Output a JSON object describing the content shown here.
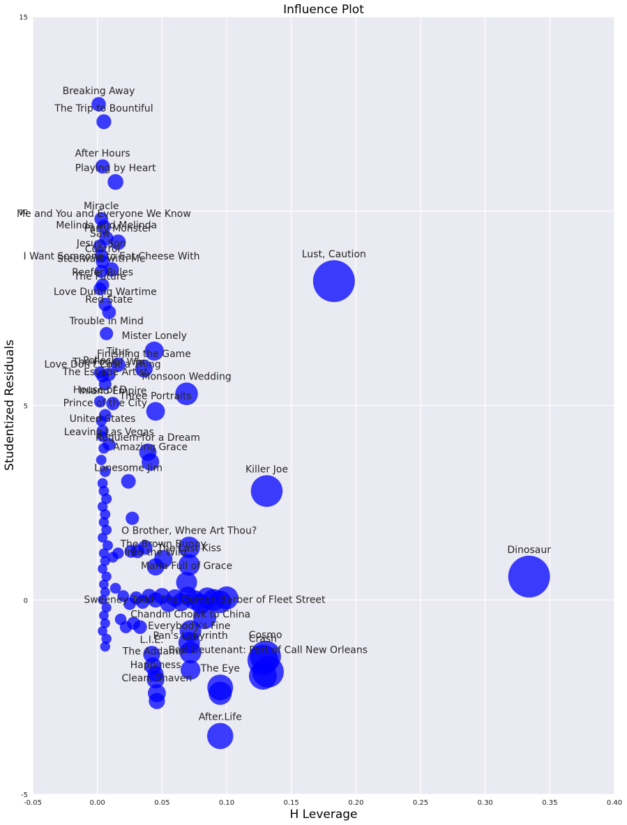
{
  "chart_data": {
    "type": "scatter",
    "title": "Influence Plot",
    "xlabel": "H Leverage",
    "ylabel": "Studentized Residuals",
    "xlim": [
      -0.05,
      0.4
    ],
    "ylim": [
      -5,
      15
    ],
    "xticks": [
      "-0.05",
      "0.00",
      "0.05",
      "0.10",
      "0.15",
      "0.20",
      "0.25",
      "0.30",
      "0.35",
      "0.40"
    ],
    "yticks": [
      "-5",
      "0",
      "5",
      "10",
      "15"
    ],
    "grid": true,
    "colors": {
      "background": "#eaeaf2",
      "grid": "#ffffff",
      "marker": "#0000ff",
      "label": "#262626"
    },
    "labeled_points": [
      {
        "label": "Breaking Away",
        "x": 0.001,
        "y": 12.75
      },
      {
        "label": "The Trip to Bountiful",
        "x": 0.005,
        "y": 12.3
      },
      {
        "label": "After Hours",
        "x": 0.004,
        "y": 11.15
      },
      {
        "label": "Playing by Heart",
        "x": 0.014,
        "y": 10.75
      },
      {
        "label": "Miracle",
        "x": 0.003,
        "y": 9.8
      },
      {
        "label": "Me and You and Everyone We Know",
        "x": 0.005,
        "y": 9.6
      },
      {
        "label": "Melinda and Melinda",
        "x": 0.007,
        "y": 9.3
      },
      {
        "label": "Party Monster",
        "x": 0.016,
        "y": 9.2
      },
      {
        "label": "Saw",
        "x": 0.002,
        "y": 9.1
      },
      {
        "label": "Jesus' Son",
        "x": 0.003,
        "y": 8.85
      },
      {
        "label": "Control",
        "x": 0.004,
        "y": 8.7
      },
      {
        "label": "Steelwalk with Me",
        "x": 0.003,
        "y": 8.45
      },
      {
        "label": "I Want Someone to Eat Cheese With",
        "x": 0.011,
        "y": 8.5
      },
      {
        "label": "Reefer Rules",
        "x": 0.004,
        "y": 8.1
      },
      {
        "label": "The Future",
        "x": 0.002,
        "y": 8.0
      },
      {
        "label": "Love During Wartime",
        "x": 0.006,
        "y": 7.6
      },
      {
        "label": "Red State",
        "x": 0.009,
        "y": 7.4
      },
      {
        "label": "Trouble in Mind",
        "x": 0.007,
        "y": 6.85
      },
      {
        "label": "Mister Lonely",
        "x": 0.044,
        "y": 6.4
      },
      {
        "label": "Titus",
        "x": 0.016,
        "y": 6.05
      },
      {
        "label": "Finishing the Game",
        "x": 0.036,
        "y": 5.95
      },
      {
        "label": "Pollock",
        "x": 0.002,
        "y": 5.85
      },
      {
        "label": "The Fog of War",
        "x": 0.009,
        "y": 5.8
      },
      {
        "label": "Love Don't Cost a Thing",
        "x": 0.004,
        "y": 5.75
      },
      {
        "label": "The Escape Artist",
        "x": 0.006,
        "y": 5.55
      },
      {
        "label": "Monsoon Wedding",
        "x": 0.069,
        "y": 5.3
      },
      {
        "label": "House of D",
        "x": 0.002,
        "y": 5.1
      },
      {
        "label": "Inland Empire",
        "x": 0.012,
        "y": 5.05
      },
      {
        "label": "Three Portraits",
        "x": 0.045,
        "y": 4.85
      },
      {
        "label": "Prince of the City",
        "x": 0.006,
        "y": 4.75
      },
      {
        "label": "United States",
        "x": 0.004,
        "y": 4.35
      },
      {
        "label": "Leaving Las Vegas",
        "x": 0.009,
        "y": 4.0
      },
      {
        "label": "Requiem for a Dream",
        "x": 0.039,
        "y": 3.8
      },
      {
        "label": "Amazing Grace",
        "x": 0.041,
        "y": 3.55
      },
      {
        "label": "Lonesome Jim",
        "x": 0.024,
        "y": 3.05
      },
      {
        "label": "Killer Joe",
        "x": 0.131,
        "y": 2.8
      },
      {
        "label": "O Brother, Where Art Thou?",
        "x": 0.071,
        "y": 1.35
      },
      {
        "label": "The Brown Bunny",
        "x": 0.051,
        "y": 1.05
      },
      {
        "label": "Into the Wild",
        "x": 0.045,
        "y": 0.85
      },
      {
        "label": "The Last Kiss",
        "x": 0.071,
        "y": 0.9
      },
      {
        "label": "Maria Full of Grace",
        "x": 0.069,
        "y": 0.45
      },
      {
        "label": "Dinosaur",
        "x": 0.334,
        "y": 0.6
      },
      {
        "label": "Sweeney Todd: The Demon Barber of Fleet Street",
        "x": 0.083,
        "y": -0.45
      },
      {
        "label": "Chandni Chowk to China",
        "x": 0.072,
        "y": -0.8
      },
      {
        "label": "Everybody's Fine",
        "x": 0.071,
        "y": -1.1
      },
      {
        "label": "Pan's Labyrinth",
        "x": 0.072,
        "y": -1.35
      },
      {
        "label": "L.I.E.",
        "x": 0.042,
        "y": -1.4
      },
      {
        "label": "The Addams",
        "x": 0.043,
        "y": -1.7
      },
      {
        "label": "Cosmo",
        "x": 0.13,
        "y": -1.45
      },
      {
        "label": "Crash",
        "x": 0.128,
        "y": -1.55
      },
      {
        "label": "Bad Lieutenant: Port of Call New Orleans",
        "x": 0.132,
        "y": -1.85
      },
      {
        "label": "Happiness",
        "x": 0.045,
        "y": -2.05
      },
      {
        "label": "The Eye",
        "x": 0.095,
        "y": -2.25
      },
      {
        "label": "Clean, Shaven",
        "x": 0.046,
        "y": -2.4
      },
      {
        "label": "After.Life",
        "x": 0.095,
        "y": -3.5
      },
      {
        "label": "Lust, Caution",
        "x": 0.183,
        "y": 8.2
      }
    ],
    "unlabeled_points": [
      {
        "x": 0.003,
        "y": 4.6
      },
      {
        "x": 0.004,
        "y": 4.2
      },
      {
        "x": 0.005,
        "y": 3.9
      },
      {
        "x": 0.003,
        "y": 3.6
      },
      {
        "x": 0.006,
        "y": 3.3
      },
      {
        "x": 0.004,
        "y": 3.0
      },
      {
        "x": 0.005,
        "y": 2.8
      },
      {
        "x": 0.007,
        "y": 2.6
      },
      {
        "x": 0.004,
        "y": 2.4
      },
      {
        "x": 0.006,
        "y": 2.2
      },
      {
        "x": 0.005,
        "y": 2.0
      },
      {
        "x": 0.007,
        "y": 1.8
      },
      {
        "x": 0.004,
        "y": 1.6
      },
      {
        "x": 0.008,
        "y": 1.4
      },
      {
        "x": 0.005,
        "y": 1.2
      },
      {
        "x": 0.006,
        "y": 1.0
      },
      {
        "x": 0.004,
        "y": 0.8
      },
      {
        "x": 0.007,
        "y": 0.6
      },
      {
        "x": 0.005,
        "y": 0.4
      },
      {
        "x": 0.006,
        "y": 0.2
      },
      {
        "x": 0.004,
        "y": 0.0
      },
      {
        "x": 0.007,
        "y": -0.2
      },
      {
        "x": 0.005,
        "y": -0.4
      },
      {
        "x": 0.006,
        "y": -0.6
      },
      {
        "x": 0.004,
        "y": -0.8
      },
      {
        "x": 0.007,
        "y": -1.0
      },
      {
        "x": 0.006,
        "y": -1.2
      },
      {
        "x": 0.012,
        "y": 1.1
      },
      {
        "x": 0.016,
        "y": 1.2
      },
      {
        "x": 0.026,
        "y": 1.25
      },
      {
        "x": 0.031,
        "y": 1.25
      },
      {
        "x": 0.037,
        "y": 1.35
      },
      {
        "x": 0.027,
        "y": 2.1
      },
      {
        "x": 0.014,
        "y": 0.3
      },
      {
        "x": 0.02,
        "y": 0.1
      },
      {
        "x": 0.025,
        "y": -0.1
      },
      {
        "x": 0.03,
        "y": 0.05
      },
      {
        "x": 0.035,
        "y": -0.05
      },
      {
        "x": 0.04,
        "y": 0.1
      },
      {
        "x": 0.045,
        "y": 0.0
      },
      {
        "x": 0.05,
        "y": 0.1
      },
      {
        "x": 0.055,
        "y": -0.1
      },
      {
        "x": 0.06,
        "y": 0.05
      },
      {
        "x": 0.065,
        "y": -0.05
      },
      {
        "x": 0.07,
        "y": 0.1
      },
      {
        "x": 0.075,
        "y": 0.0
      },
      {
        "x": 0.08,
        "y": -0.1
      },
      {
        "x": 0.085,
        "y": 0.05
      },
      {
        "x": 0.09,
        "y": 0.0
      },
      {
        "x": 0.095,
        "y": -0.05
      },
      {
        "x": 0.1,
        "y": 0.05
      },
      {
        "x": 0.018,
        "y": -0.5
      },
      {
        "x": 0.022,
        "y": -0.7
      },
      {
        "x": 0.028,
        "y": -0.6
      },
      {
        "x": 0.033,
        "y": -0.7
      },
      {
        "x": 0.045,
        "y": -1.9
      },
      {
        "x": 0.046,
        "y": -2.6
      },
      {
        "x": 0.072,
        "y": -1.8
      },
      {
        "x": 0.095,
        "y": -2.4
      },
      {
        "x": 0.128,
        "y": -1.95
      }
    ]
  }
}
